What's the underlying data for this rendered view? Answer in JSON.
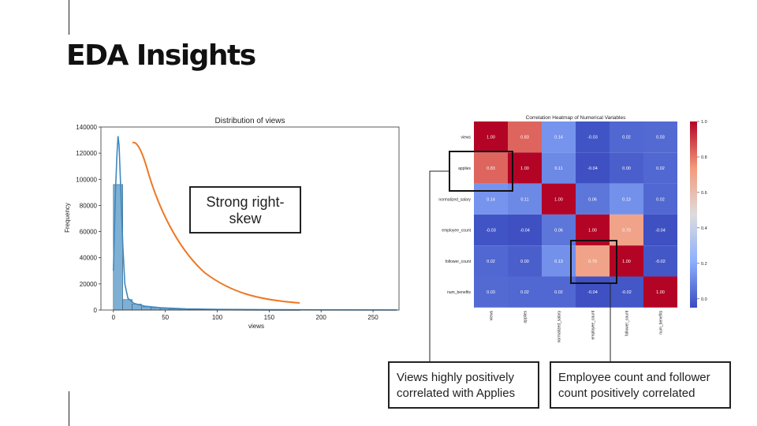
{
  "slide": {
    "title": "EDA Insights"
  },
  "annotations": {
    "skew_label": "Strong right-skew",
    "applies_callout": "Views highly positively correlated with Applies",
    "employee_callout": "Employee count and follower count positively correlated"
  },
  "colors": {
    "hist_bar": "#7fb0d4",
    "kde_line": "#3f88bf",
    "highlight_curve": "#ee7722"
  },
  "chart_data": [
    {
      "type": "bar",
      "title": "Distribution of views",
      "xlabel": "views",
      "ylabel": "Frequency",
      "xlim": [
        -12,
        275
      ],
      "ylim": [
        0,
        140000
      ],
      "x_ticks": [
        0,
        50,
        100,
        150,
        200,
        250
      ],
      "y_ticks": [
        0,
        20000,
        40000,
        60000,
        80000,
        100000,
        120000,
        140000
      ],
      "bins": [
        {
          "start": 0,
          "end": 9,
          "count": 96000
        },
        {
          "start": 9,
          "end": 18,
          "count": 8000
        },
        {
          "start": 18,
          "end": 27,
          "count": 4500
        },
        {
          "start": 27,
          "end": 36,
          "count": 2500
        },
        {
          "start": 36,
          "end": 45,
          "count": 1800
        },
        {
          "start": 45,
          "end": 54,
          "count": 1300
        },
        {
          "start": 54,
          "end": 63,
          "count": 900
        },
        {
          "start": 63,
          "end": 72,
          "count": 700
        },
        {
          "start": 72,
          "end": 81,
          "count": 500
        },
        {
          "start": 81,
          "end": 90,
          "count": 400
        },
        {
          "start": 90,
          "end": 99,
          "count": 300
        },
        {
          "start": 99,
          "end": 108,
          "count": 250
        },
        {
          "start": 108,
          "end": 117,
          "count": 200
        },
        {
          "start": 117,
          "end": 126,
          "count": 150
        },
        {
          "start": 126,
          "end": 135,
          "count": 120
        },
        {
          "start": 135,
          "end": 144,
          "count": 100
        },
        {
          "start": 144,
          "end": 153,
          "count": 80
        },
        {
          "start": 153,
          "end": 162,
          "count": 60
        },
        {
          "start": 162,
          "end": 171,
          "count": 50
        },
        {
          "start": 171,
          "end": 180,
          "count": 40
        }
      ],
      "kde": [
        {
          "x": 0,
          "y": 30000
        },
        {
          "x": 2,
          "y": 90000
        },
        {
          "x": 3.5,
          "y": 120000
        },
        {
          "x": 4.5,
          "y": 133000
        },
        {
          "x": 5.5,
          "y": 126000
        },
        {
          "x": 7,
          "y": 95000
        },
        {
          "x": 9,
          "y": 50000
        },
        {
          "x": 11,
          "y": 20000
        },
        {
          "x": 14,
          "y": 9000
        },
        {
          "x": 20,
          "y": 5000
        },
        {
          "x": 30,
          "y": 3000
        },
        {
          "x": 45,
          "y": 1800
        },
        {
          "x": 70,
          "y": 900
        },
        {
          "x": 100,
          "y": 500
        },
        {
          "x": 150,
          "y": 250
        },
        {
          "x": 200,
          "y": 100
        },
        {
          "x": 273,
          "y": 40
        }
      ]
    },
    {
      "type": "heatmap",
      "title": "Correlation Heatmap of Numerical Variables",
      "variables": [
        "views",
        "applies",
        "normalized_salary",
        "employee_count",
        "follower_count",
        "num_benefits"
      ],
      "matrix": [
        [
          1.0,
          0.83,
          0.14,
          -0.03,
          0.02,
          0.03
        ],
        [
          0.83,
          1.0,
          0.11,
          -0.04,
          0.0,
          0.02
        ],
        [
          0.14,
          0.11,
          1.0,
          0.06,
          0.13,
          0.02
        ],
        [
          -0.03,
          -0.04,
          0.06,
          1.0,
          0.7,
          -0.04
        ],
        [
          0.02,
          0.0,
          0.13,
          0.7,
          1.0,
          -0.02
        ],
        [
          0.03,
          0.02,
          0.02,
          -0.04,
          -0.02,
          1.0
        ]
      ],
      "colorbar": {
        "colormap": "coolwarm",
        "range": [
          -0.05,
          1.0
        ],
        "ticks": [
          "0.0",
          "0.2",
          "0.4",
          "0.6",
          "0.8",
          "1.0"
        ]
      }
    }
  ]
}
